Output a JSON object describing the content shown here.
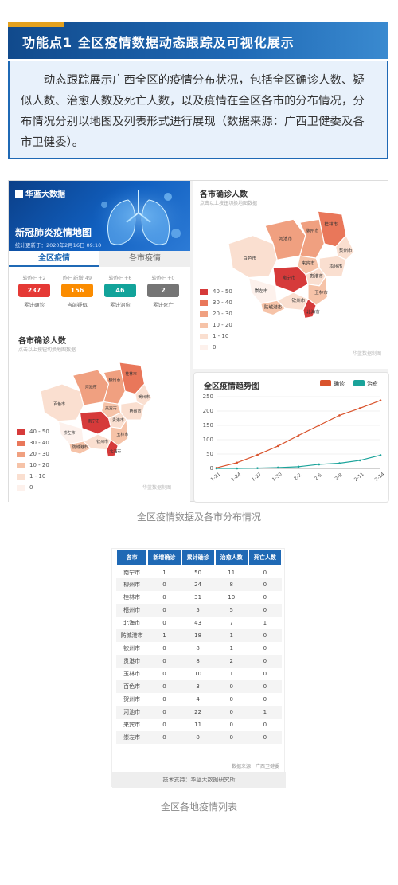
{
  "banner": {
    "title": "功能点1  全区疫情数据动态跟踪及可视化展示"
  },
  "description": "动态跟踪展示广西全区的疫情分布状况，包括全区确诊人数、疑似人数、治愈人数及死亡人数，以及疫情在全区各市的分布情况，分布情况分别以地图及列表形式进行展现（数据来源：广西卫健委及各市卫健委）。",
  "app": {
    "logo": "华蓝大数据",
    "title": "新冠肺炎疫情地图",
    "updated": "统计更新于：2020年2月16日 09:10",
    "tabs": [
      "全区疫情",
      "各市疫情"
    ],
    "stats": [
      {
        "cap": "较昨日+2",
        "value": "237",
        "label": "累计确诊",
        "color": "#e53935"
      },
      {
        "cap": "昨日新增 49",
        "value": "156",
        "label": "当前疑似",
        "color": "#fb8c00"
      },
      {
        "cap": "较昨日+6",
        "value": "46",
        "label": "累计治愈",
        "color": "#12a39a"
      },
      {
        "cap": "较昨日+0",
        "value": "2",
        "label": "累计死亡",
        "color": "#757575"
      }
    ]
  },
  "map": {
    "title": "各市确诊人数",
    "subtitle": "点击以上按钮切换地图数据",
    "legend": [
      {
        "label": "40 - 50",
        "color": "#d63a3a"
      },
      {
        "label": "30 - 40",
        "color": "#e9775a"
      },
      {
        "label": "20 - 30",
        "color": "#f0a080"
      },
      {
        "label": "10 - 20",
        "color": "#f6c3a8"
      },
      {
        "label": "1 - 10",
        "color": "#fadfd0"
      },
      {
        "label": "0",
        "color": "#fdf1ec"
      }
    ],
    "source": "华蓝数据制图",
    "cities": [
      {
        "name": "百色市"
      },
      {
        "name": "河池市"
      },
      {
        "name": "柳州市"
      },
      {
        "name": "桂林市"
      },
      {
        "name": "贺州市"
      },
      {
        "name": "来宾市"
      },
      {
        "name": "梧州市"
      },
      {
        "name": "贵港市"
      },
      {
        "name": "南宁市"
      },
      {
        "name": "崇左市"
      },
      {
        "name": "玉林市"
      },
      {
        "name": "防城港市"
      },
      {
        "name": "钦州市"
      },
      {
        "name": "北海市"
      }
    ]
  },
  "chart_data": {
    "type": "line",
    "title": "全区疫情趋势图",
    "x": [
      "1-21",
      "1-24",
      "1-27",
      "1-30",
      "2-2",
      "2-5",
      "2-8",
      "2-11",
      "2-14"
    ],
    "ylim": [
      0,
      250
    ],
    "yticks": [
      0,
      50,
      100,
      150,
      200,
      250
    ],
    "series": [
      {
        "name": "确诊",
        "color": "#d9532c",
        "values": [
          2,
          20,
          47,
          78,
          115,
          150,
          185,
          210,
          237
        ]
      },
      {
        "name": "治愈",
        "color": "#1aa39a",
        "values": [
          0,
          0,
          1,
          3,
          6,
          14,
          18,
          28,
          46
        ]
      }
    ]
  },
  "captions": {
    "first": "全区疫情数据及各市分布情况",
    "second": "全区各地疫情列表"
  },
  "table": {
    "headers": [
      "各市",
      "新增确诊",
      "累计确诊",
      "治愈人数",
      "死亡人数"
    ],
    "rows": [
      [
        "南宁市",
        "1",
        "50",
        "11",
        "0"
      ],
      [
        "柳州市",
        "0",
        "24",
        "8",
        "0"
      ],
      [
        "桂林市",
        "0",
        "31",
        "10",
        "0"
      ],
      [
        "梧州市",
        "0",
        "5",
        "5",
        "0"
      ],
      [
        "北海市",
        "0",
        "43",
        "7",
        "1"
      ],
      [
        "防城港市",
        "1",
        "18",
        "1",
        "0"
      ],
      [
        "钦州市",
        "0",
        "8",
        "1",
        "0"
      ],
      [
        "贵港市",
        "0",
        "8",
        "2",
        "0"
      ],
      [
        "玉林市",
        "0",
        "10",
        "1",
        "0"
      ],
      [
        "百色市",
        "0",
        "3",
        "0",
        "0"
      ],
      [
        "贺州市",
        "0",
        "4",
        "0",
        "0"
      ],
      [
        "河池市",
        "0",
        "22",
        "0",
        "1"
      ],
      [
        "来宾市",
        "0",
        "11",
        "0",
        "0"
      ],
      [
        "崇左市",
        "0",
        "0",
        "0",
        "0"
      ]
    ],
    "source": "数据来源：广西卫健委",
    "support": "技术支持：华蓝大数据研究所"
  }
}
